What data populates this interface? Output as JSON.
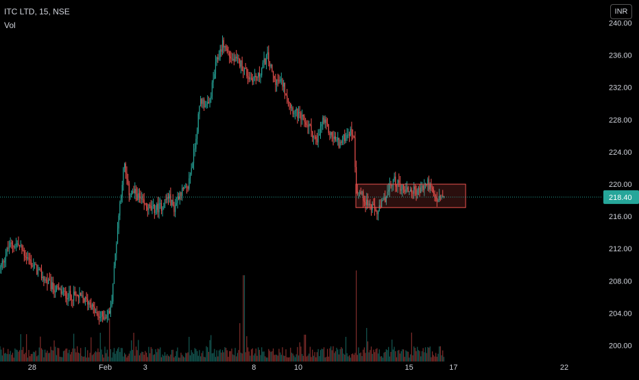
{
  "header": {
    "symbol": "ITC LTD, 15, NSE",
    "volume_label": "Vol",
    "currency": "INR"
  },
  "colors": {
    "up": "#26a69a",
    "down": "#ef5350",
    "background": "#000000",
    "axis_text": "#d1d4dc",
    "last_price_bg": "#26a69a",
    "zone_fill": "rgba(239,83,80,0.18)",
    "zone_stroke": "#ef5350"
  },
  "chart_data": {
    "type": "candlestick",
    "title": "",
    "ylim": [
      198,
      242
    ],
    "y_ticks": [
      "240.00",
      "236.00",
      "232.00",
      "228.00",
      "224.00",
      "220.00",
      "216.00",
      "212.00",
      "208.00",
      "204.00",
      "200.00"
    ],
    "x_ticks": [
      {
        "label": "28",
        "x": 28
      },
      {
        "label": "Feb",
        "x": 31.3
      },
      {
        "label": "3",
        "x": 33.1
      },
      {
        "label": "8",
        "x": 38
      },
      {
        "label": "10",
        "x": 40
      },
      {
        "label": "15",
        "x": 45
      },
      {
        "label": "17",
        "x": 47
      },
      {
        "label": "22",
        "x": 52
      }
    ],
    "xlim": [
      26.55,
      53.7
    ],
    "last_price": "218.40",
    "last_price_value": 218.4,
    "anchors": [
      [
        26.55,
        209.5
      ],
      [
        26.95,
        212.3
      ],
      [
        27.35,
        212.6
      ],
      [
        27.8,
        210.8
      ],
      [
        28.3,
        209.0
      ],
      [
        28.9,
        207.2
      ],
      [
        29.5,
        206.3
      ],
      [
        30.1,
        206.0
      ],
      [
        30.6,
        205.3
      ],
      [
        30.95,
        203.5
      ],
      [
        31.4,
        203.8
      ],
      [
        31.55,
        204.5
      ],
      [
        31.8,
        213.0
      ],
      [
        31.95,
        217.5
      ],
      [
        32.15,
        222.5
      ],
      [
        32.35,
        219.0
      ],
      [
        32.7,
        218.8
      ],
      [
        33.0,
        217.5
      ],
      [
        33.4,
        216.8
      ],
      [
        33.8,
        217.2
      ],
      [
        34.15,
        218.5
      ],
      [
        34.4,
        217.0
      ],
      [
        34.65,
        219.0
      ],
      [
        35.0,
        219.3
      ],
      [
        35.3,
        224.0
      ],
      [
        35.6,
        230.5
      ],
      [
        35.95,
        229.5
      ],
      [
        36.3,
        235.0
      ],
      [
        36.6,
        237.5
      ],
      [
        37.0,
        235.5
      ],
      [
        37.4,
        235.0
      ],
      [
        37.8,
        233.2
      ],
      [
        38.2,
        233.3
      ],
      [
        38.6,
        236.0
      ],
      [
        38.9,
        233.0
      ],
      [
        39.3,
        232.5
      ],
      [
        39.7,
        229.5
      ],
      [
        40.1,
        228.2
      ],
      [
        40.5,
        227.2
      ],
      [
        40.85,
        225.0
      ],
      [
        41.1,
        228.0
      ],
      [
        41.5,
        226.0
      ],
      [
        41.9,
        225.0
      ],
      [
        42.25,
        226.5
      ],
      [
        42.5,
        226.3
      ],
      [
        42.62,
        219.5
      ],
      [
        42.9,
        218.5
      ],
      [
        43.25,
        217.2
      ],
      [
        43.6,
        216.5
      ],
      [
        43.95,
        218.5
      ],
      [
        44.3,
        220.5
      ],
      [
        44.7,
        219.5
      ],
      [
        45.1,
        219.2
      ],
      [
        45.5,
        219.2
      ],
      [
        45.85,
        220.2
      ],
      [
        46.2,
        218.0
      ],
      [
        46.6,
        218.4
      ]
    ],
    "volume_spikes": [
      {
        "x": 37.55,
        "v": 0.9
      },
      {
        "x": 42.6,
        "v": 0.95
      },
      {
        "x": 37.35,
        "v": 0.4
      },
      {
        "x": 31.5,
        "v": 0.45
      },
      {
        "x": 43.1,
        "v": 0.35
      },
      {
        "x": 32.6,
        "v": 0.3
      },
      {
        "x": 40.3,
        "v": 0.28
      },
      {
        "x": 29.0,
        "v": 0.22
      }
    ],
    "zone": {
      "x_start": 42.6,
      "x_end": 47.55,
      "y_high": 220.0,
      "y_low": 217.1
    }
  }
}
